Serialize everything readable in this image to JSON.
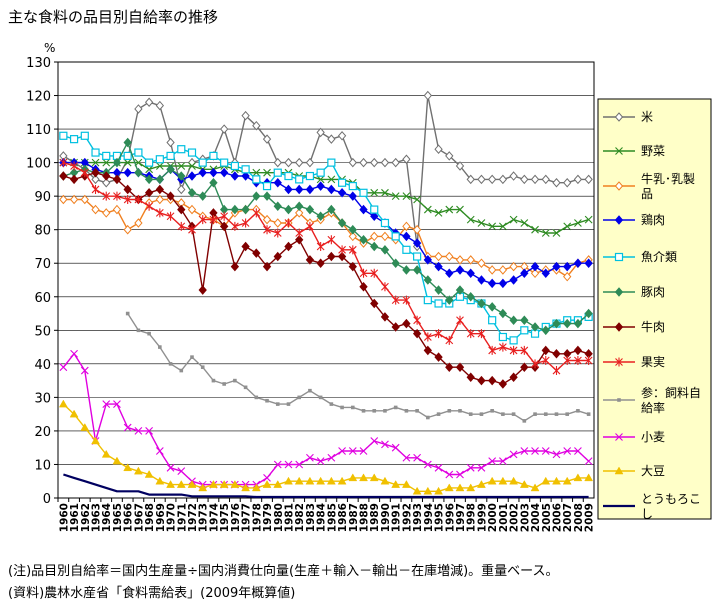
{
  "chart_data": {
    "type": "line",
    "title": "主な食料の品目別自給率の推移",
    "ylabel": "%",
    "ylim": [
      0,
      130
    ],
    "yticks": [
      0,
      10,
      20,
      30,
      40,
      50,
      60,
      70,
      80,
      90,
      100,
      110,
      120,
      130
    ],
    "grid": "horizontal",
    "legend_position": "right",
    "x": [
      "1960",
      "1961",
      "1962",
      "1963",
      "1964",
      "1965",
      "1966",
      "1967",
      "1968",
      "1969",
      "1970",
      "1971",
      "1972",
      "1973",
      "1974",
      "1975",
      "1976",
      "1977",
      "1978",
      "1979",
      "1980",
      "1981",
      "1982",
      "1983",
      "1984",
      "1985",
      "1986",
      "1987",
      "1988",
      "1989",
      "1990",
      "1991",
      "1992",
      "1993",
      "1994",
      "1995",
      "1996",
      "1997",
      "1998",
      "1999",
      "2000",
      "2001",
      "2002",
      "2003",
      "2004",
      "2005",
      "2006",
      "2007",
      "2008",
      "2009"
    ],
    "series": [
      {
        "name": "米",
        "color": "#707070",
        "marker": "diamond-open",
        "values": [
          102,
          100,
          98,
          95,
          94,
          95,
          101,
          116,
          118,
          117,
          106,
          92,
          100,
          101,
          102,
          110,
          100,
          114,
          111,
          107,
          100,
          100,
          100,
          100,
          109,
          107,
          108,
          100,
          100,
          100,
          100,
          100,
          101,
          75,
          120,
          104,
          102,
          99,
          95,
          95,
          95,
          95,
          96,
          95,
          95,
          95,
          94,
          94,
          95,
          95
        ]
      },
      {
        "name": "野菜",
        "color": "#2e8b22",
        "marker": "x",
        "values": [
          100,
          100,
          100,
          100,
          100,
          100,
          100,
          100,
          98,
          99,
          99,
          99,
          99,
          98,
          98,
          99,
          98,
          97,
          97,
          97,
          97,
          97,
          96,
          96,
          95,
          95,
          95,
          94,
          91,
          91,
          91,
          90,
          90,
          89,
          86,
          85,
          86,
          86,
          83,
          82,
          81,
          81,
          83,
          82,
          80,
          79,
          79,
          81,
          82,
          83
        ]
      },
      {
        "name": "牛乳･乳製品",
        "color": "#f08020",
        "marker": "diamond-open",
        "values": [
          89,
          89,
          89,
          86,
          85,
          86,
          80,
          82,
          88,
          89,
          89,
          88,
          86,
          84,
          83,
          81,
          85,
          86,
          86,
          83,
          82,
          82,
          85,
          82,
          83,
          85,
          82,
          78,
          76,
          78,
          78,
          77,
          81,
          80,
          72,
          72,
          72,
          71,
          71,
          70,
          68,
          68,
          69,
          69,
          67,
          68,
          68,
          66,
          70,
          71
        ]
      },
      {
        "name": "鶏肉",
        "color": "#0000e8",
        "marker": "diamond",
        "values": [
          100,
          100,
          100,
          98,
          97,
          97,
          97,
          97,
          96,
          95,
          98,
          95,
          96,
          97,
          97,
          97,
          96,
          96,
          94,
          94,
          94,
          92,
          92,
          92,
          93,
          92,
          91,
          90,
          86,
          84,
          82,
          79,
          78,
          76,
          71,
          69,
          67,
          68,
          67,
          65,
          64,
          64,
          65,
          67,
          69,
          67,
          69,
          69,
          70,
          70
        ]
      },
      {
        "name": "魚介類",
        "color": "#00c0e0",
        "marker": "square-open",
        "values": [
          108,
          107,
          108,
          103,
          102,
          102,
          102,
          103,
          100,
          101,
          102,
          104,
          103,
          100,
          102,
          100,
          99,
          98,
          95,
          93,
          97,
          96,
          95,
          96,
          97,
          100,
          94,
          93,
          91,
          86,
          82,
          78,
          74,
          72,
          59,
          58,
          58,
          60,
          59,
          58,
          53,
          48,
          47,
          50,
          49,
          51,
          52,
          53,
          53,
          54
        ]
      },
      {
        "name": "豚肉",
        "color": "#2e8b57",
        "marker": "diamond",
        "values": [
          96,
          97,
          98,
          97,
          97,
          100,
          106,
          97,
          95,
          95,
          98,
          96,
          91,
          90,
          94,
          86,
          86,
          86,
          90,
          90,
          87,
          86,
          87,
          86,
          84,
          86,
          82,
          80,
          77,
          75,
          74,
          70,
          68,
          68,
          65,
          62,
          59,
          62,
          60,
          58,
          57,
          55,
          53,
          53,
          51,
          50,
          52,
          52,
          52,
          55
        ]
      },
      {
        "name": "牛肉",
        "color": "#800000",
        "marker": "diamond",
        "values": [
          96,
          95,
          96,
          97,
          96,
          95,
          92,
          89,
          91,
          92,
          90,
          86,
          81,
          62,
          85,
          81,
          69,
          75,
          73,
          69,
          72,
          75,
          77,
          71,
          70,
          72,
          72,
          69,
          63,
          58,
          54,
          51,
          52,
          49,
          44,
          42,
          39,
          39,
          36,
          35,
          35,
          34,
          36,
          39,
          39,
          44,
          43,
          43,
          44,
          43
        ]
      },
      {
        "name": "果実",
        "color": "#e82020",
        "marker": "star",
        "values": [
          100,
          99,
          97,
          92,
          90,
          90,
          89,
          89,
          87,
          85,
          84,
          81,
          80,
          83,
          83,
          84,
          81,
          82,
          85,
          80,
          79,
          82,
          79,
          81,
          75,
          77,
          74,
          74,
          67,
          67,
          63,
          59,
          59,
          53,
          48,
          49,
          47,
          53,
          49,
          49,
          44,
          45,
          44,
          44,
          40,
          41,
          38,
          41,
          41,
          41
        ]
      },
      {
        "name": "参：飼料自給率",
        "color": "#909090",
        "marker": "square-small",
        "values": [
          null,
          null,
          null,
          null,
          null,
          null,
          55,
          50,
          49,
          45,
          40,
          38,
          42,
          39,
          35,
          34,
          35,
          33,
          30,
          29,
          28,
          28,
          30,
          32,
          30,
          28,
          27,
          27,
          26,
          26,
          26,
          27,
          26,
          26,
          24,
          25,
          26,
          26,
          25,
          25,
          26,
          25,
          25,
          23,
          25,
          25,
          25,
          25,
          26,
          25
        ]
      },
      {
        "name": "小麦",
        "color": "#e000e0",
        "marker": "x",
        "values": [
          39,
          43,
          38,
          17,
          28,
          28,
          21,
          20,
          20,
          14,
          9,
          8,
          5,
          4,
          4,
          4,
          4,
          4,
          4,
          6,
          10,
          10,
          10,
          12,
          11,
          12,
          14,
          14,
          14,
          17,
          16,
          15,
          12,
          12,
          10,
          9,
          7,
          7,
          9,
          9,
          11,
          11,
          13,
          14,
          14,
          14,
          13,
          14,
          14,
          11
        ]
      },
      {
        "name": "大豆",
        "color": "#f0c000",
        "marker": "triangle",
        "values": [
          28,
          25,
          21,
          17,
          13,
          11,
          9,
          8,
          7,
          5,
          4,
          4,
          4,
          3,
          4,
          4,
          4,
          3,
          3,
          4,
          4,
          5,
          5,
          5,
          5,
          5,
          5,
          6,
          6,
          6,
          5,
          4,
          4,
          2,
          2,
          2,
          3,
          3,
          3,
          4,
          5,
          5,
          5,
          4,
          3,
          5,
          5,
          5,
          6,
          6
        ]
      },
      {
        "name": "とうもろこし",
        "color": "#000060",
        "marker": "none",
        "values": [
          7,
          6,
          5,
          4,
          3,
          2,
          2,
          2,
          1,
          1,
          1,
          1,
          0.5,
          0.5,
          0.5,
          0.5,
          0.5,
          0.5,
          0.3,
          0.3,
          0.3,
          0.3,
          0.3,
          0.3,
          0.3,
          0.3,
          0.3,
          0.3,
          0.3,
          0.3,
          0.3,
          0.3,
          0.3,
          0.3,
          0.3,
          0.3,
          0.3,
          0.3,
          0.3,
          0.3,
          0.3,
          0.3,
          0.3,
          0.3,
          0.3,
          0.3,
          0.3,
          0.3,
          0.3,
          0.3
        ]
      }
    ]
  },
  "notes": {
    "note": "(注)品目別自給率＝国内生産量÷国内消費仕向量(生産＋輸入－輸出－在庫増減)。重量ベース。",
    "source": "(資料)農林水産省「食料需給表」(2009年概算値)"
  }
}
